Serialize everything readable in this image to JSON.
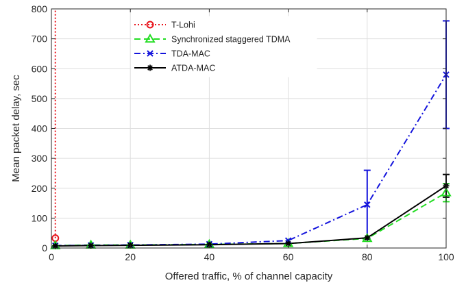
{
  "chart_data": {
    "type": "line",
    "xlabel": "Offered traffic, % of channel capacity",
    "ylabel": "Mean packet delay, sec",
    "xlim": [
      0,
      100
    ],
    "ylim": [
      0,
      800
    ],
    "xticks": [
      0,
      20,
      40,
      60,
      80,
      100
    ],
    "yticks": [
      0,
      100,
      200,
      300,
      400,
      500,
      600,
      700,
      800
    ],
    "grid": true,
    "legend_position": "top-center",
    "series": [
      {
        "name": "T-Lohi",
        "color": "#e8141c",
        "line": "dotted",
        "marker": "circle",
        "x": [
          1,
          1
        ],
        "y": [
          33,
          800
        ]
      },
      {
        "name": "Synchronized staggered TDMA",
        "color": "#22dd22",
        "line": "dashed",
        "marker": "triangle",
        "x": [
          1,
          10,
          20,
          40,
          60,
          80,
          100
        ],
        "y": [
          8,
          10,
          10,
          12,
          15,
          32,
          185
        ],
        "error": [
          null,
          null,
          null,
          null,
          null,
          null,
          30
        ]
      },
      {
        "name": "TDA-MAC",
        "color": "#1414dc",
        "line": "dashdot",
        "marker": "x",
        "x": [
          1,
          10,
          20,
          40,
          60,
          80,
          100
        ],
        "y": [
          8,
          9,
          10,
          13,
          25,
          145,
          580
        ],
        "error": [
          null,
          null,
          null,
          null,
          null,
          115,
          180
        ]
      },
      {
        "name": "ATDA-MAC",
        "color": "#000000",
        "line": "solid",
        "marker": "asterisk",
        "x": [
          1,
          10,
          20,
          40,
          60,
          80,
          100
        ],
        "y": [
          7,
          8,
          9,
          11,
          15,
          34,
          208
        ],
        "error": [
          null,
          null,
          null,
          null,
          null,
          null,
          38
        ]
      }
    ]
  }
}
